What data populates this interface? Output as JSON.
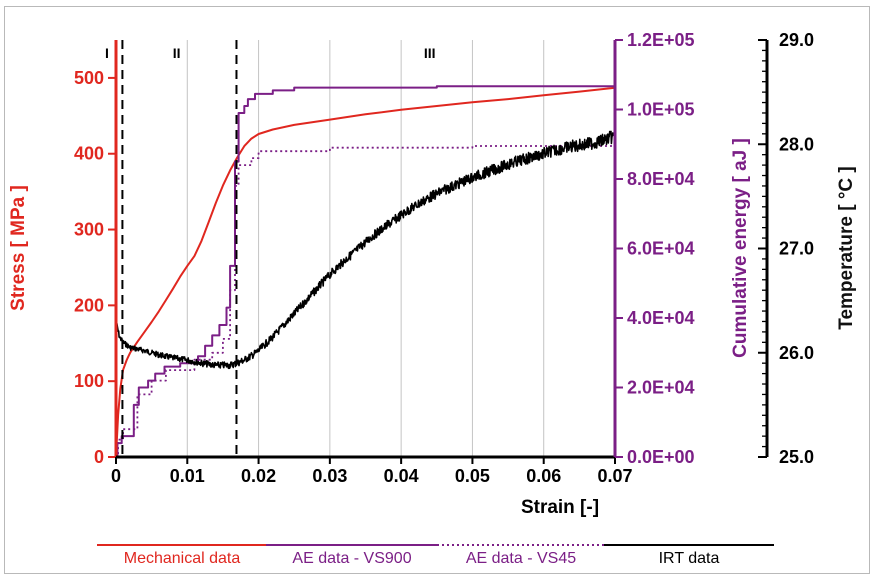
{
  "chart_data": {
    "type": "line",
    "xlabel": "Strain [-]",
    "xlim": [
      0,
      0.07
    ],
    "xticks": [
      "0",
      "0.01",
      "0.02",
      "0.03",
      "0.04",
      "0.05",
      "0.06",
      "0.07"
    ],
    "axes": {
      "stress": {
        "label": "Stress [ MPa ]",
        "color": "#e0271f",
        "lim": [
          0,
          550
        ],
        "ticks": [
          "0",
          "100",
          "200",
          "300",
          "400",
          "500"
        ]
      },
      "energy": {
        "label": "Cumulative energy [ aJ ]",
        "color": "#7b1f86",
        "lim": [
          0,
          120000
        ],
        "ticks": [
          "0.0E+00",
          "2.0E+04",
          "4.0E+04",
          "6.0E+04",
          "8.0E+04",
          "1.0E+05",
          "1.2E+05"
        ]
      },
      "temperature": {
        "label": "Temperature [ °C ]",
        "color": "#111111",
        "lim": [
          25.0,
          29.0
        ],
        "ticks": [
          "25.0",
          "26.0",
          "27.0",
          "28.0",
          "29.0"
        ]
      }
    },
    "regions": [
      {
        "label": "I",
        "x": 0.0
      },
      {
        "label": "II",
        "x": 0.0085
      },
      {
        "label": "III",
        "x": 0.044
      }
    ],
    "boundaries": [
      0.0009,
      0.0169
    ],
    "series": [
      {
        "name": "Mechanical data",
        "axis": "stress",
        "color": "#e0271f",
        "style": "solid",
        "x": [
          0,
          0.0003,
          0.0006,
          0.001,
          0.0015,
          0.002,
          0.003,
          0.004,
          0.005,
          0.006,
          0.007,
          0.008,
          0.009,
          0.01,
          0.011,
          0.012,
          0.013,
          0.014,
          0.015,
          0.016,
          0.017,
          0.018,
          0.019,
          0.02,
          0.022,
          0.025,
          0.03,
          0.035,
          0.04,
          0.045,
          0.05,
          0.055,
          0.06,
          0.065,
          0.07
        ],
        "y": [
          0,
          55,
          90,
          115,
          128,
          138,
          152,
          165,
          178,
          192,
          207,
          222,
          238,
          252,
          265,
          285,
          310,
          335,
          358,
          378,
          395,
          410,
          420,
          426,
          432,
          438,
          445,
          452,
          458,
          463,
          468,
          472,
          477,
          482,
          487
        ]
      },
      {
        "name": "AE data - VS900",
        "axis": "energy",
        "color": "#7b1f86",
        "style": "solid",
        "x": [
          0,
          0.0002,
          0.0002,
          0.0008,
          0.0008,
          0.0025,
          0.0025,
          0.0032,
          0.0032,
          0.0045,
          0.0045,
          0.0055,
          0.0055,
          0.0068,
          0.0068,
          0.009,
          0.009,
          0.0115,
          0.0115,
          0.0125,
          0.0125,
          0.0135,
          0.0135,
          0.0145,
          0.0145,
          0.0155,
          0.0155,
          0.016,
          0.016,
          0.0167,
          0.0167,
          0.0172,
          0.0172,
          0.018,
          0.018,
          0.0185,
          0.0185,
          0.0195,
          0.0195,
          0.022,
          0.022,
          0.025,
          0.025,
          0.045,
          0.045,
          0.07
        ],
        "y": [
          0,
          0,
          4000,
          4000,
          6000,
          6000,
          15000,
          15000,
          20000,
          20000,
          22000,
          22000,
          24000,
          24000,
          26000,
          26000,
          27000,
          27000,
          29000,
          29000,
          32000,
          32000,
          35000,
          35000,
          38000,
          38000,
          43000,
          43000,
          55000,
          55000,
          85000,
          85000,
          99000,
          99000,
          101000,
          101000,
          103000,
          103000,
          104500,
          104500,
          105500,
          105500,
          106300,
          106300,
          106700,
          106700
        ]
      },
      {
        "name": "AE data - VS45",
        "axis": "energy",
        "color": "#7b1f86",
        "style": "dotted",
        "x": [
          0,
          0.0003,
          0.0003,
          0.001,
          0.001,
          0.003,
          0.003,
          0.005,
          0.005,
          0.007,
          0.007,
          0.011,
          0.011,
          0.0135,
          0.0135,
          0.015,
          0.015,
          0.016,
          0.016,
          0.0167,
          0.0167,
          0.0172,
          0.0172,
          0.019,
          0.019,
          0.02,
          0.02,
          0.03,
          0.03,
          0.05,
          0.05,
          0.07
        ],
        "y": [
          0,
          0,
          5000,
          5000,
          8000,
          8000,
          18000,
          18000,
          22000,
          22000,
          25000,
          25000,
          28000,
          28000,
          30000,
          30000,
          34000,
          34000,
          48000,
          48000,
          78000,
          78000,
          84000,
          84000,
          86000,
          86000,
          88000,
          88000,
          89000,
          89000,
          89500,
          89500
        ]
      },
      {
        "name": "IRT data",
        "axis": "temperature",
        "color": "#000000",
        "style": "noisy",
        "x": [
          0,
          0.0005,
          0.001,
          0.002,
          0.004,
          0.006,
          0.008,
          0.01,
          0.012,
          0.014,
          0.015,
          0.016,
          0.017,
          0.018,
          0.019,
          0.02,
          0.022,
          0.024,
          0.026,
          0.028,
          0.03,
          0.032,
          0.034,
          0.036,
          0.038,
          0.04,
          0.042,
          0.044,
          0.046,
          0.048,
          0.05,
          0.052,
          0.054,
          0.056,
          0.058,
          0.06,
          0.062,
          0.064,
          0.066,
          0.068,
          0.07
        ],
        "y": [
          26.3,
          26.15,
          26.1,
          26.05,
          26.02,
          25.98,
          25.95,
          25.93,
          25.9,
          25.88,
          25.88,
          25.88,
          25.9,
          25.93,
          25.97,
          26.02,
          26.15,
          26.3,
          26.45,
          26.6,
          26.75,
          26.88,
          27.0,
          27.12,
          27.22,
          27.32,
          27.41,
          27.49,
          27.56,
          27.62,
          27.68,
          27.73,
          27.78,
          27.83,
          27.87,
          27.91,
          27.95,
          27.98,
          28.0,
          28.03,
          28.08
        ]
      }
    ],
    "legend": [
      {
        "label": "Mechanical data",
        "color": "#e0271f",
        "style": "solid"
      },
      {
        "label": "AE data - VS900",
        "color": "#7b1f86",
        "style": "solid"
      },
      {
        "label": "AE data - VS45",
        "color": "#7b1f86",
        "style": "dotted"
      },
      {
        "label": "IRT data",
        "color": "#000000",
        "style": "solid"
      }
    ],
    "grid": "vertical"
  }
}
